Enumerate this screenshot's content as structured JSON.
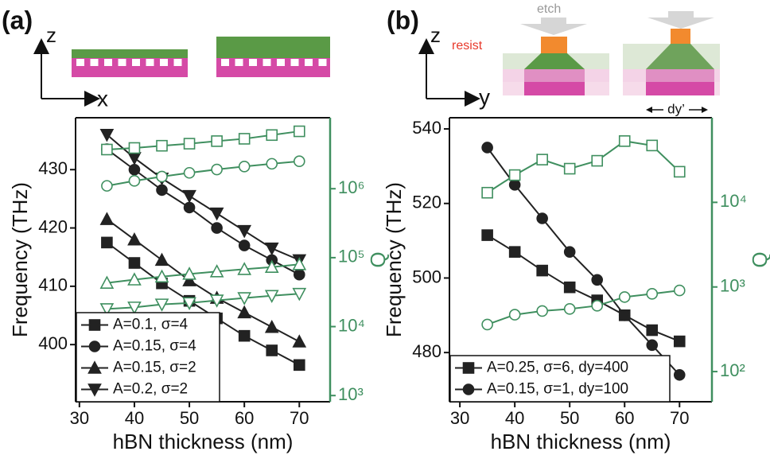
{
  "chart_data": [
    {
      "type": "line",
      "panel_label": "(a)",
      "schematic_labels": [
        "z",
        "x"
      ],
      "xlabel": "hBN thickness (nm)",
      "ylabel": "Frequency (THz)",
      "y2label": "Q",
      "x": [
        35,
        40,
        45,
        50,
        55,
        60,
        65,
        70
      ],
      "xlim": [
        29.3,
        75.6
      ],
      "xticks": [
        30,
        40,
        50,
        60,
        70
      ],
      "ylim": [
        390.2,
        438.9
      ],
      "yticks": [
        400,
        410,
        420,
        430
      ],
      "y2lim": [
        813,
        10700000
      ],
      "y2log": true,
      "y2ticks": [
        {
          "value": 1000,
          "label": "10³"
        },
        {
          "value": 10000,
          "label": "10⁴"
        },
        {
          "value": 100000,
          "label": "10⁵"
        },
        {
          "value": 1000000,
          "label": "10⁶"
        }
      ],
      "legend": "lower left",
      "series": [
        {
          "name": "A=0.1, σ=4",
          "color": "#222222",
          "marker": "square",
          "filled": true,
          "values": [
            417.5,
            414,
            410.5,
            407.5,
            404.5,
            401.5,
            399,
            396.5
          ]
        },
        {
          "name": "A=0.15, σ=4",
          "color": "#222222",
          "marker": "circle",
          "filled": true,
          "values": [
            433.5,
            430,
            426.5,
            423.5,
            420,
            417,
            414.5,
            412
          ]
        },
        {
          "name": "A=0.15, σ=2",
          "color": "#222222",
          "marker": "triangle-up",
          "filled": true,
          "values": [
            421.5,
            418,
            414.5,
            411,
            408,
            405.5,
            403,
            400.5
          ]
        },
        {
          "name": "A=0.2, σ=2",
          "color": "#222222",
          "marker": "triangle-down",
          "filled": true,
          "values": [
            436,
            432,
            428.5,
            425.5,
            422.5,
            419.5,
            416.5,
            414.5
          ]
        },
        {
          "color": "#3f8f5f",
          "marker": "square",
          "filled": false,
          "axis": "y2",
          "values": [
            3700000,
            3900000,
            4200000,
            4500000,
            4900000,
            5300000,
            6000000,
            6800000
          ]
        },
        {
          "color": "#3f8f5f",
          "marker": "circle",
          "filled": false,
          "axis": "y2",
          "values": [
            1100000,
            1300000,
            1500000,
            1700000,
            1900000,
            2100000,
            2300000,
            2500000
          ]
        },
        {
          "color": "#3f8f5f",
          "marker": "triangle-up",
          "filled": false,
          "axis": "y2",
          "values": [
            43000,
            48000,
            53000,
            58000,
            63000,
            68000,
            73000,
            80000
          ]
        },
        {
          "color": "#3f8f5f",
          "marker": "triangle-down",
          "filled": false,
          "axis": "y2",
          "values": [
            18000,
            19000,
            21000,
            22000,
            24000,
            26000,
            28000,
            30000
          ]
        }
      ]
    },
    {
      "type": "line",
      "panel_label": "(b)",
      "schematic_labels": [
        "z",
        "y",
        "etch",
        "resist",
        "dy’"
      ],
      "xlabel": "hBN thickness (nm)",
      "ylabel": "Frequency (THz)",
      "y2label": "Q",
      "x": [
        35,
        40,
        45,
        50,
        55,
        60,
        65,
        70
      ],
      "xlim": [
        28.1,
        75.9
      ],
      "xticks": [
        30,
        40,
        50,
        60,
        70
      ],
      "ylim": [
        466.8,
        543
      ],
      "yticks": [
        480,
        500,
        520,
        540
      ],
      "y2lim": [
        44,
        100000
      ],
      "y2log": true,
      "y2ticks": [
        {
          "value": 100,
          "label": "10²"
        },
        {
          "value": 1000,
          "label": "10³"
        },
        {
          "value": 10000,
          "label": "10⁴"
        }
      ],
      "legend": "lower left",
      "series": [
        {
          "name": "A=0.25, σ=6, dy=400",
          "color": "#222222",
          "marker": "square",
          "filled": true,
          "values": [
            511.5,
            507,
            502,
            497.5,
            494,
            490,
            486,
            483
          ]
        },
        {
          "name": "A=0.15, σ=1, dy=100",
          "color": "#222222",
          "marker": "circle",
          "filled": true,
          "values": [
            535,
            525,
            516,
            507,
            499.5,
            490,
            482,
            474
          ]
        },
        {
          "color": "#3f8f5f",
          "marker": "square",
          "filled": false,
          "axis": "y2",
          "values": [
            13000,
            21000,
            32000,
            25000,
            31000,
            53000,
            47000,
            23000
          ]
        },
        {
          "color": "#3f8f5f",
          "marker": "circle",
          "filled": false,
          "axis": "y2",
          "values": [
            360,
            470,
            520,
            550,
            600,
            760,
            830,
            910
          ]
        }
      ]
    }
  ]
}
